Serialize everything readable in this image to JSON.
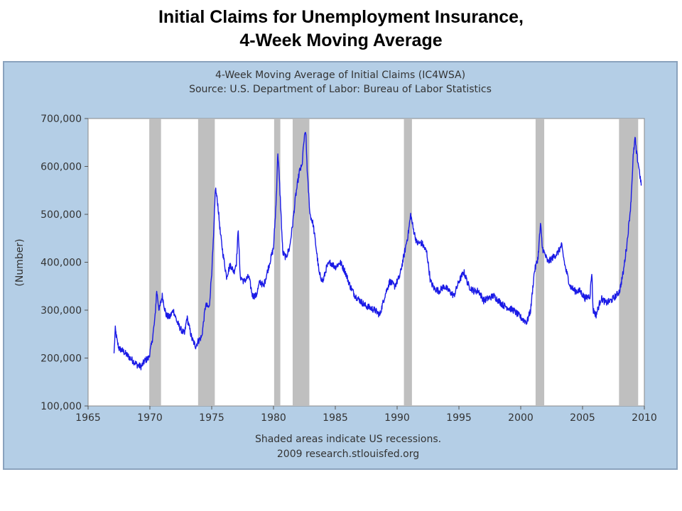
{
  "slide": {
    "title_line1": "Initial Claims for Unemployment Insurance,",
    "title_line2": "4-Week Moving Average"
  },
  "colors": {
    "panel_background": "#b4cee6",
    "plot_background": "#ffffff",
    "series_line": "#1a1ae6",
    "recession_shade": "#bfbfbf"
  },
  "chart_data": {
    "type": "line",
    "title": "4-Week Moving Average of Initial Claims (IC4WSA)",
    "subtitle": "Source: U.S. Department of Labor: Bureau of Labor Statistics",
    "xlabel": "",
    "ylabel": "(Number)",
    "xlim": [
      1965,
      2010
    ],
    "ylim": [
      100000,
      700000
    ],
    "x_ticks": [
      1965,
      1970,
      1975,
      1980,
      1985,
      1990,
      1995,
      2000,
      2005,
      2010
    ],
    "y_ticks": [
      100000,
      200000,
      300000,
      400000,
      500000,
      600000,
      700000
    ],
    "y_tick_labels": [
      "100,000",
      "200,000",
      "300,000",
      "400,000",
      "500,000",
      "600,000",
      "700,000"
    ],
    "grid": false,
    "legend": "none",
    "footnote": "Shaded areas indicate US recessions.",
    "credit": "2009 research.stlouisfed.org",
    "recessions": [
      [
        1969.95,
        1970.9
      ],
      [
        1973.9,
        1975.25
      ],
      [
        1980.05,
        1980.55
      ],
      [
        1981.55,
        1982.9
      ],
      [
        1990.55,
        1991.2
      ],
      [
        2001.2,
        2001.9
      ],
      [
        2007.95,
        2009.5
      ]
    ],
    "series": [
      {
        "x": [
          1967.1,
          1967.2,
          1967.35,
          1967.5,
          1967.8,
          1968.2,
          1968.6,
          1969.0,
          1969.3,
          1969.6,
          1969.9,
          1970.15,
          1970.4,
          1970.55,
          1970.75,
          1971.0,
          1971.3,
          1971.6,
          1971.9,
          1972.2,
          1972.5,
          1972.8,
          1973.0,
          1973.4,
          1973.7,
          1973.9,
          1974.2,
          1974.5,
          1974.8,
          1975.0,
          1975.15,
          1975.3,
          1975.5,
          1975.7,
          1975.9,
          1976.2,
          1976.5,
          1976.8,
          1977.0,
          1977.15,
          1977.3,
          1977.6,
          1978.0,
          1978.3,
          1978.6,
          1978.9,
          1979.2,
          1979.5,
          1979.8,
          1980.0,
          1980.2,
          1980.35,
          1980.5,
          1980.75,
          1981.0,
          1981.3,
          1981.55,
          1981.8,
          1982.1,
          1982.3,
          1982.45,
          1982.6,
          1982.75,
          1982.95,
          1983.2,
          1983.45,
          1983.7,
          1984.0,
          1984.3,
          1984.6,
          1985.0,
          1985.4,
          1985.8,
          1986.2,
          1986.6,
          1987.0,
          1987.4,
          1987.8,
          1988.2,
          1988.6,
          1989.0,
          1989.4,
          1989.8,
          1990.2,
          1990.6,
          1990.9,
          1991.1,
          1991.3,
          1991.6,
          1992.0,
          1992.4,
          1992.7,
          1993.0,
          1993.4,
          1993.8,
          1994.2,
          1994.6,
          1995.0,
          1995.4,
          1995.8,
          1996.2,
          1996.6,
          1997.0,
          1997.4,
          1997.8,
          1998.2,
          1998.6,
          1999.0,
          1999.4,
          1999.8,
          2000.2,
          2000.5,
          2000.8,
          2001.1,
          2001.4,
          2001.6,
          2001.75,
          2001.9,
          2002.2,
          2002.6,
          2003.0,
          2003.3,
          2003.6,
          2004.0,
          2004.4,
          2004.8,
          2005.2,
          2005.6,
          2005.75,
          2005.85,
          2006.1,
          2006.5,
          2006.9,
          2007.3,
          2007.7,
          2008.0,
          2008.3,
          2008.6,
          2008.9,
          2009.1,
          2009.25,
          2009.35,
          2009.55,
          2009.75
        ],
        "values": [
          210000,
          260000,
          235000,
          220000,
          215000,
          205000,
          195000,
          185000,
          182000,
          195000,
          200000,
          230000,
          280000,
          340000,
          300000,
          330000,
          290000,
          285000,
          300000,
          275000,
          260000,
          250000,
          285000,
          240000,
          225000,
          235000,
          245000,
          310000,
          305000,
          380000,
          450000,
          555000,
          520000,
          460000,
          420000,
          370000,
          395000,
          380000,
          400000,
          470000,
          370000,
          360000,
          370000,
          330000,
          330000,
          360000,
          350000,
          380000,
          410000,
          430000,
          520000,
          630000,
          560000,
          420000,
          410000,
          430000,
          480000,
          540000,
          590000,
          600000,
          650000,
          675000,
          580000,
          500000,
          480000,
          430000,
          375000,
          360000,
          390000,
          400000,
          390000,
          400000,
          380000,
          350000,
          330000,
          320000,
          310000,
          305000,
          300000,
          290000,
          330000,
          360000,
          350000,
          370000,
          420000,
          460000,
          500000,
          470000,
          440000,
          440000,
          420000,
          360000,
          345000,
          340000,
          350000,
          340000,
          330000,
          360000,
          380000,
          350000,
          340000,
          340000,
          320000,
          325000,
          330000,
          320000,
          310000,
          305000,
          300000,
          290000,
          280000,
          275000,
          300000,
          380000,
          410000,
          480000,
          430000,
          420000,
          400000,
          410000,
          420000,
          435000,
          390000,
          350000,
          340000,
          340000,
          325000,
          330000,
          380000,
          300000,
          290000,
          325000,
          315000,
          320000,
          330000,
          340000,
          380000,
          440000,
          520000,
          620000,
          660000,
          630000,
          600000,
          560000
        ]
      }
    ]
  }
}
